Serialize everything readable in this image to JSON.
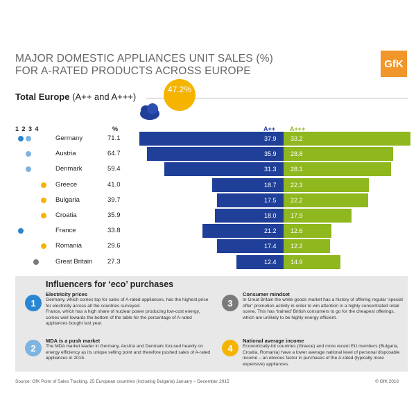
{
  "header": {
    "title_line1": "MAJOR DOMESTIC APPLIANCES UNIT SALES (%)",
    "title_line2": "FOR A-RATED PRODUCTS ACROSS EUROPE",
    "logo": "GfK"
  },
  "total": {
    "label_bold": "Total Europe",
    "label_rest": "(A++ and A+++)",
    "value": "47.2%"
  },
  "table_headers": {
    "influencers": "1 2 3 4",
    "pct": "%",
    "app": "A++",
    "appp": "A+++"
  },
  "colors": {
    "app": "#1f3f99",
    "appp": "#8fb71e",
    "i1": "#2a86d1",
    "i2": "#7fb4e0",
    "i3": "#7a7a7a",
    "i4": "#f4b400"
  },
  "chart_data": {
    "type": "bar",
    "orientation": "horizontal-diverging",
    "title": "Total Europe (A++ and A+++) 47.2%",
    "categories": [
      "Germany",
      "Austria",
      "Denmark",
      "Greece",
      "Bulgaria",
      "Croatia",
      "France",
      "Romania",
      "Great Britain"
    ],
    "total_pct": [
      71.1,
      64.7,
      59.4,
      41.0,
      39.7,
      35.9,
      33.8,
      29.6,
      27.3
    ],
    "total_pct_labels": [
      "71.1",
      "64.7",
      "59.4",
      "41.0",
      "39.7",
      "35.9",
      "33.8",
      "29.6",
      "27.3"
    ],
    "series": [
      {
        "name": "A++",
        "values": [
          37.9,
          35.9,
          31.3,
          18.7,
          17.5,
          18.0,
          21.2,
          17.4,
          12.4
        ],
        "labels": [
          "37.9",
          "35.9",
          "31.3",
          "18.7",
          "17.5",
          "18.0",
          "21.2",
          "17.4",
          "12.4"
        ]
      },
      {
        "name": "A+++",
        "values": [
          33.2,
          28.8,
          28.1,
          22.3,
          22.2,
          17.9,
          12.6,
          12.2,
          14.9
        ],
        "labels": [
          "33.2",
          "28.8",
          "28.1",
          "22.3",
          "22.2",
          "17.9",
          "12.6",
          "12.2",
          "14.9"
        ]
      }
    ],
    "influencers": [
      [
        1,
        2
      ],
      [
        2
      ],
      [
        2
      ],
      [
        4
      ],
      [
        4
      ],
      [
        4
      ],
      [
        1
      ],
      [
        4
      ],
      [
        3
      ]
    ]
  },
  "influencers": {
    "title": "Influencers for ‘eco’ purchases",
    "items": [
      {
        "num": "1",
        "heading": "Electricity prices",
        "body1": "Germany, which comes top for sales of A-rated appliances, has the highest price for electricity across all the countries surveyed.",
        "body2": "France, which has a high share of nuclear power producing low-cost energy, comes well towards the bottom of the table for the percentage of A-rated appliances bought last year."
      },
      {
        "num": "2",
        "heading": "MDA is a push market",
        "body1": "The MDA market leader in Germany, Austria and Denmark focused heavily on energy efficiency as its unique selling point and therefore pushed sales of A-rated appliances in 2015.",
        "body2": ""
      },
      {
        "num": "3",
        "heading": "Consumer mindset",
        "body1": "In Great Britain the white goods market has a history of offering regular ‘special offer’ promotion activity in order to win attention in a highly concentrated retail scene. This has ‘trained’ British consumers to go for the cheapest offerings, which are unlikely to be highly energy efficient.",
        "body2": ""
      },
      {
        "num": "4",
        "heading": "National average income",
        "body1": "Economically-hit countries (Greece) and more recent EU members (Bulgaria, Croatia, Romania) have a lower average national level of personal disposable income – an obvious factor in purchases of the A-rated (typically more expensive) appliances.",
        "body2": ""
      }
    ]
  },
  "footer": {
    "source": "Source: GfK Point of Sales Tracking. 25 European countries (including Bulgaria) January – December 2015",
    "copyright": "© GfK 2016"
  }
}
